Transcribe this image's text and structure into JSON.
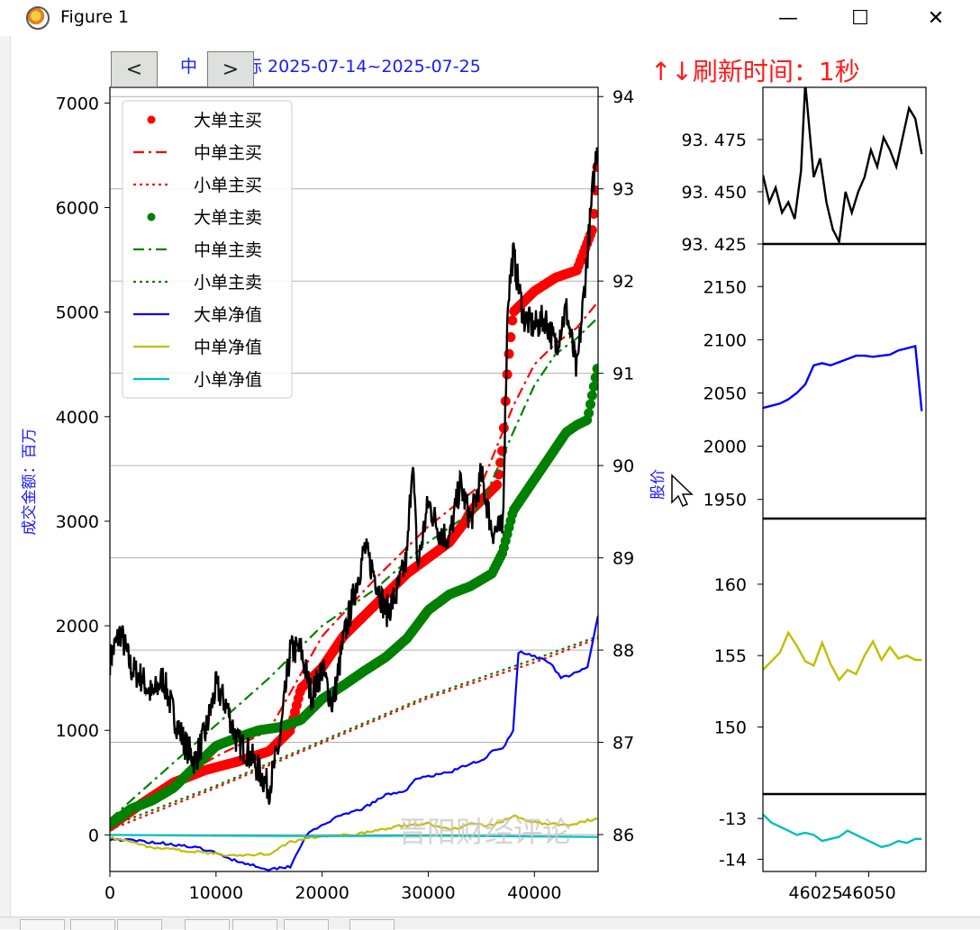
{
  "window": {
    "title": "Figure 1",
    "minimize_glyph": "—",
    "maximize_glyph": "☐",
    "close_glyph": "✕",
    "icon": "matplotlib-icon"
  },
  "nav": {
    "prev_glyph": "<",
    "next_glyph": ">"
  },
  "refresh_label": "↑↓刷新时间：1秒",
  "chart_data": [
    {
      "type": "line",
      "title": "中… 标 2025-07-14~2025-07-25",
      "title_fragments": [
        "中",
        "标 2025-07-14~2025-07-25"
      ],
      "ylabel": "成交金额：百万",
      "ylabel_right": "股价",
      "xlim": [
        0,
        46000
      ],
      "ylim": [
        -350,
        7150
      ],
      "ylim_right": [
        85.6,
        94.1
      ],
      "xticks": [
        0,
        10000,
        20000,
        30000,
        40000
      ],
      "yticks": [
        0,
        1000,
        2000,
        3000,
        4000,
        5000,
        6000,
        7000
      ],
      "yticks_right": [
        86,
        87,
        88,
        89,
        90,
        91,
        92,
        93,
        94
      ],
      "grid_right": true,
      "legend_position": "upper-left",
      "watermark": "晋阳财经评论",
      "colors": {
        "big_buy": "#ff0000",
        "mid_buy": "#ff0000",
        "small_buy": "#ff0000",
        "big_sell": "#008000",
        "mid_sell": "#008000",
        "small_sell": "#008000",
        "big_net": "#0000ff",
        "mid_net": "#bfbf00",
        "small_net": "#00bfbf",
        "price": "#000000"
      },
      "series": [
        {
          "name": "大单主买",
          "style": "dot",
          "x": [
            0,
            3000,
            6000,
            9000,
            12000,
            15000,
            17000,
            18000,
            20000,
            22000,
            24000,
            26000,
            28000,
            30000,
            32000,
            33500,
            34000,
            35500,
            36500,
            37000,
            37500,
            38000,
            40000,
            42000,
            44000,
            45500,
            46000
          ],
          "y": [
            80,
            300,
            500,
            620,
            700,
            800,
            1000,
            1400,
            1600,
            1900,
            2100,
            2300,
            2500,
            2650,
            2800,
            3000,
            3100,
            3250,
            3350,
            3700,
            4500,
            5000,
            5200,
            5330,
            5400,
            5800,
            6500
          ]
        },
        {
          "name": "中单主买",
          "style": "dashdot",
          "x": [
            0,
            5000,
            10000,
            15000,
            20000,
            25000,
            30000,
            35000,
            38000,
            40000,
            42000,
            44000,
            46000
          ],
          "y": [
            100,
            450,
            750,
            1000,
            1900,
            2450,
            2950,
            3350,
            4100,
            4500,
            4700,
            4850,
            5100
          ]
        },
        {
          "name": "小单主买",
          "style": "dotted",
          "x": [
            0,
            10000,
            20000,
            30000,
            40000,
            46000
          ],
          "y": [
            50,
            450,
            880,
            1310,
            1650,
            1880
          ]
        },
        {
          "name": "大单主卖",
          "style": "dot",
          "x": [
            0,
            2000,
            4000,
            6000,
            8000,
            10000,
            12000,
            14000,
            16000,
            18000,
            20000,
            22000,
            24000,
            26000,
            28000,
            30000,
            32000,
            34000,
            36000,
            37000,
            38000,
            40000,
            42000,
            43000,
            44000,
            45000,
            46000
          ],
          "y": [
            100,
            250,
            330,
            450,
            650,
            850,
            930,
            1000,
            1030,
            1100,
            1300,
            1430,
            1570,
            1700,
            1880,
            2150,
            2300,
            2380,
            2500,
            2700,
            3100,
            3400,
            3700,
            3850,
            3920,
            3970,
            4500
          ]
        },
        {
          "name": "中单主卖",
          "style": "dashdot",
          "x": [
            0,
            5000,
            10000,
            15000,
            20000,
            25000,
            30000,
            35000,
            38000,
            40000,
            42000,
            44000,
            46000
          ],
          "y": [
            150,
            600,
            1050,
            1500,
            2000,
            2350,
            2800,
            3150,
            3850,
            4300,
            4600,
            4750,
            4950
          ]
        },
        {
          "name": "小单主卖",
          "style": "dotted",
          "x": [
            0,
            10000,
            20000,
            30000,
            40000,
            46000
          ],
          "y": [
            80,
            470,
            900,
            1330,
            1680,
            1900
          ]
        },
        {
          "name": "大单净值",
          "style": "solid",
          "x": [
            0,
            3000,
            6000,
            9000,
            12000,
            15000,
            17000,
            18500,
            21000,
            24000,
            26000,
            28000,
            29000,
            30000,
            32000,
            34000,
            35500,
            36000,
            37000,
            38000,
            38500,
            40000,
            41500,
            42500,
            44000,
            45000,
            46000
          ],
          "y": [
            -40,
            -60,
            -90,
            -140,
            -250,
            -330,
            -300,
            0,
            150,
            260,
            380,
            430,
            550,
            560,
            600,
            680,
            740,
            800,
            820,
            1000,
            1750,
            1710,
            1650,
            1500,
            1550,
            1600,
            2100
          ]
        },
        {
          "name": "中单净值",
          "style": "solid",
          "x": [
            0,
            4000,
            8000,
            12000,
            15000,
            17000,
            19000,
            23000,
            27000,
            30000,
            32000,
            34000,
            36000,
            38000,
            40000,
            43000,
            46000
          ],
          "y": [
            -20,
            -120,
            -160,
            -200,
            -180,
            -70,
            -20,
            0,
            80,
            110,
            50,
            100,
            90,
            180,
            120,
            90,
            160
          ]
        },
        {
          "name": "小单净值",
          "style": "solid",
          "x": [
            0,
            10000,
            20000,
            30000,
            40000,
            46000
          ],
          "y": [
            0,
            -8,
            -12,
            -8,
            -15,
            -20
          ]
        },
        {
          "name": "",
          "style": "price",
          "axis": "right",
          "x": [
            0,
            1000,
            2000,
            3000,
            4000,
            5000,
            6000,
            7000,
            8000,
            9000,
            10000,
            11000,
            12000,
            13000,
            14000,
            15000,
            16000,
            17000,
            18000,
            19000,
            20000,
            21000,
            22000,
            23000,
            24000,
            25000,
            26000,
            27000,
            28000,
            28500,
            29000,
            30000,
            31000,
            32000,
            33000,
            34000,
            35000,
            36000,
            37000,
            37500,
            38000,
            39000,
            40000,
            41000,
            42000,
            43000,
            44000,
            45000,
            45500,
            46000
          ],
          "y": [
            87.9,
            88.2,
            87.8,
            87.7,
            87.5,
            87.7,
            87.3,
            87.0,
            86.8,
            87.1,
            87.6,
            87.4,
            87.0,
            86.9,
            86.7,
            86.5,
            87.0,
            88.0,
            88.0,
            87.5,
            87.8,
            87.4,
            88.1,
            88.6,
            89.1,
            88.8,
            88.4,
            88.6,
            89.0,
            90.1,
            88.9,
            89.6,
            89.3,
            89.2,
            89.8,
            89.4,
            89.9,
            89.3,
            89.3,
            91.8,
            92.3,
            91.6,
            91.5,
            91.6,
            91.3,
            91.7,
            91.0,
            92.3,
            93.0,
            93.6
          ]
        }
      ],
      "legend": [
        "大单主买",
        "中单主买",
        "小单主买",
        "大单主卖",
        "中单主卖",
        "小单主卖",
        "大单净值",
        "中单净值",
        "小单净值"
      ]
    },
    {
      "type": "line",
      "ylim": [
        93.425,
        93.5
      ],
      "yticks": [
        93.425,
        93.45,
        93.475
      ],
      "ytick_labels": [
        "93. 425",
        "93. 450",
        "93. 475"
      ],
      "xlim": [
        46000,
        46077
      ],
      "series": [
        {
          "name": "",
          "color": "#000000",
          "x": [
            46000,
            46003,
            46006,
            46009,
            46012,
            46015,
            46018,
            46020,
            46024,
            46027,
            46030,
            46033,
            46036,
            46039,
            46042,
            46045,
            46048,
            46051,
            46054,
            46057,
            46060,
            46063,
            46066,
            46069,
            46072,
            46075
          ],
          "y": [
            93.458,
            93.445,
            93.452,
            93.44,
            93.445,
            93.437,
            93.46,
            93.502,
            93.457,
            93.466,
            93.445,
            93.432,
            93.426,
            93.45,
            93.44,
            93.45,
            93.457,
            93.47,
            93.462,
            93.476,
            93.47,
            93.462,
            93.476,
            93.49,
            93.485,
            93.468
          ]
        }
      ]
    },
    {
      "type": "line",
      "ylim": [
        1932,
        2190
      ],
      "yticks": [
        1950,
        2000,
        2050,
        2100,
        2150
      ],
      "xlim": [
        46000,
        46077
      ],
      "series": [
        {
          "name": "",
          "color": "#0000ff",
          "x": [
            46000,
            46004,
            46008,
            46012,
            46016,
            46020,
            46024,
            46028,
            46032,
            46036,
            46040,
            46044,
            46048,
            46052,
            46056,
            46060,
            46064,
            46068,
            46072,
            46075
          ],
          "y": [
            2036,
            2038,
            2040,
            2044,
            2050,
            2058,
            2076,
            2078,
            2076,
            2079,
            2082,
            2085,
            2085,
            2084,
            2085,
            2086,
            2090,
            2092,
            2094,
            2033
          ]
        }
      ]
    },
    {
      "type": "line",
      "ylim": [
        145.3,
        164.6
      ],
      "yticks": [
        150,
        155,
        160
      ],
      "xlim": [
        46000,
        46077
      ],
      "series": [
        {
          "name": "",
          "color": "#bfbf00",
          "x": [
            46000,
            46004,
            46008,
            46012,
            46016,
            46020,
            46024,
            46028,
            46032,
            46036,
            46040,
            46044,
            46048,
            46052,
            46056,
            46060,
            46064,
            46068,
            46072,
            46075
          ],
          "y": [
            154.0,
            154.6,
            155.2,
            156.6,
            155.7,
            154.6,
            154.3,
            155.9,
            154.4,
            153.3,
            154.0,
            153.7,
            155.0,
            156.0,
            154.7,
            155.6,
            154.8,
            155.0,
            154.7,
            154.7
          ]
        }
      ]
    },
    {
      "type": "line",
      "ylim": [
        -14.3,
        -12.4
      ],
      "yticks": [
        -14,
        -13
      ],
      "xlim": [
        46000,
        46077
      ],
      "xticks": [
        46025,
        46050
      ],
      "series": [
        {
          "name": "",
          "color": "#00bfbf",
          "x": [
            46000,
            46004,
            46008,
            46012,
            46016,
            46020,
            46024,
            46028,
            46032,
            46036,
            46040,
            46044,
            46048,
            46052,
            46056,
            46060,
            46064,
            46068,
            46072,
            46075
          ],
          "y": [
            -12.9,
            -13.1,
            -13.2,
            -13.3,
            -13.4,
            -13.35,
            -13.4,
            -13.55,
            -13.5,
            -13.45,
            -13.3,
            -13.4,
            -13.5,
            -13.6,
            -13.7,
            -13.65,
            -13.55,
            -13.6,
            -13.5,
            -13.5
          ]
        }
      ]
    }
  ]
}
